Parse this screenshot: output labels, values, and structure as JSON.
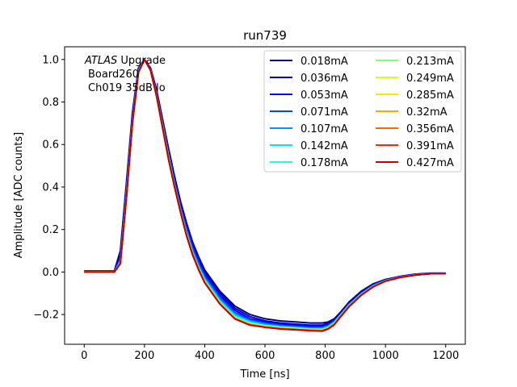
{
  "chart_data": {
    "type": "line",
    "title": "run739",
    "xlabel": "Time [ns]",
    "ylabel": "Amplitude [ADC counts]",
    "xlim": [
      -65,
      1265
    ],
    "ylim": [
      -0.34,
      1.06
    ],
    "xticks": [
      0,
      200,
      400,
      600,
      800,
      1000,
      1200
    ],
    "yticks": [
      -0.2,
      0.0,
      0.2,
      0.4,
      0.6,
      0.8,
      1.0
    ],
    "xtick_labels": [
      "0",
      "200",
      "400",
      "600",
      "800",
      "1000",
      "1200"
    ],
    "ytick_labels": [
      "−0.2",
      "0.0",
      "0.2",
      "0.4",
      "0.6",
      "0.8",
      "1.0"
    ],
    "grid": false,
    "legend_position": "top-right",
    "legend_columns": 2,
    "annotation": {
      "line1_italic": "ATLAS",
      "line1_rest": " Upgrade",
      "line2": "Board260",
      "line3": "Ch019 35dB lo"
    },
    "x": [
      0,
      100,
      120,
      140,
      160,
      180,
      200,
      220,
      240,
      260,
      280,
      300,
      320,
      340,
      360,
      380,
      400,
      450,
      500,
      550,
      600,
      650,
      700,
      750,
      790,
      810,
      830,
      850,
      880,
      920,
      960,
      1000,
      1050,
      1100,
      1150,
      1200
    ],
    "series": [
      {
        "name": "0.018mA",
        "color": "#00007f",
        "values": [
          0.005,
          0.005,
          0.1,
          0.42,
          0.75,
          0.96,
          1.0,
          0.96,
          0.86,
          0.72,
          0.58,
          0.45,
          0.33,
          0.23,
          0.14,
          0.07,
          0.01,
          -0.09,
          -0.16,
          -0.2,
          -0.22,
          -0.23,
          -0.235,
          -0.24,
          -0.24,
          -0.235,
          -0.22,
          -0.19,
          -0.14,
          -0.09,
          -0.055,
          -0.035,
          -0.02,
          -0.01,
          -0.005,
          -0.005
        ]
      },
      {
        "name": "0.036mA",
        "color": "#0000c4",
        "values": [
          0.003,
          0.003,
          0.08,
          0.4,
          0.74,
          0.96,
          1.0,
          0.96,
          0.85,
          0.71,
          0.57,
          0.44,
          0.32,
          0.22,
          0.13,
          0.06,
          0.0,
          -0.1,
          -0.17,
          -0.21,
          -0.23,
          -0.24,
          -0.245,
          -0.25,
          -0.25,
          -0.24,
          -0.225,
          -0.195,
          -0.145,
          -0.095,
          -0.058,
          -0.037,
          -0.021,
          -0.011,
          -0.006,
          -0.006
        ]
      },
      {
        "name": "0.053mA",
        "color": "#0000ff",
        "values": [
          0.002,
          0.002,
          0.07,
          0.39,
          0.73,
          0.96,
          1.0,
          0.96,
          0.85,
          0.7,
          0.56,
          0.43,
          0.31,
          0.21,
          0.12,
          0.05,
          -0.01,
          -0.11,
          -0.18,
          -0.22,
          -0.235,
          -0.245,
          -0.25,
          -0.255,
          -0.255,
          -0.245,
          -0.228,
          -0.198,
          -0.148,
          -0.097,
          -0.06,
          -0.038,
          -0.022,
          -0.012,
          -0.006,
          -0.006
        ]
      },
      {
        "name": "0.071mA",
        "color": "#0048ff",
        "values": [
          0.001,
          0.001,
          0.06,
          0.38,
          0.72,
          0.95,
          1.0,
          0.95,
          0.84,
          0.7,
          0.55,
          0.42,
          0.3,
          0.2,
          0.11,
          0.04,
          -0.02,
          -0.12,
          -0.19,
          -0.225,
          -0.24,
          -0.25,
          -0.255,
          -0.26,
          -0.26,
          -0.25,
          -0.232,
          -0.2,
          -0.15,
          -0.1,
          -0.062,
          -0.039,
          -0.023,
          -0.013,
          -0.007,
          -0.007
        ]
      },
      {
        "name": "0.107mA",
        "color": "#0094ff",
        "values": [
          0.0,
          0.0,
          0.05,
          0.37,
          0.71,
          0.95,
          1.0,
          0.95,
          0.84,
          0.69,
          0.55,
          0.41,
          0.29,
          0.19,
          0.1,
          0.03,
          -0.03,
          -0.13,
          -0.2,
          -0.23,
          -0.245,
          -0.255,
          -0.26,
          -0.265,
          -0.265,
          -0.255,
          -0.235,
          -0.203,
          -0.153,
          -0.102,
          -0.064,
          -0.04,
          -0.024,
          -0.013,
          -0.007,
          -0.007
        ]
      },
      {
        "name": "0.142mA",
        "color": "#00e5f7",
        "values": [
          0.0,
          0.0,
          0.05,
          0.36,
          0.7,
          0.94,
          1.0,
          0.95,
          0.83,
          0.69,
          0.54,
          0.41,
          0.29,
          0.18,
          0.09,
          0.02,
          -0.035,
          -0.135,
          -0.205,
          -0.235,
          -0.25,
          -0.258,
          -0.262,
          -0.267,
          -0.268,
          -0.258,
          -0.238,
          -0.205,
          -0.155,
          -0.104,
          -0.065,
          -0.041,
          -0.024,
          -0.014,
          -0.008,
          -0.008
        ]
      },
      {
        "name": "0.178mA",
        "color": "#29ffce",
        "values": [
          0.0,
          0.0,
          0.04,
          0.36,
          0.7,
          0.94,
          1.0,
          0.95,
          0.83,
          0.68,
          0.54,
          0.4,
          0.28,
          0.18,
          0.09,
          0.02,
          -0.04,
          -0.14,
          -0.21,
          -0.24,
          -0.252,
          -0.26,
          -0.264,
          -0.269,
          -0.27,
          -0.26,
          -0.24,
          -0.207,
          -0.157,
          -0.105,
          -0.066,
          -0.042,
          -0.025,
          -0.014,
          -0.008,
          -0.008
        ]
      },
      {
        "name": "0.213mA",
        "color": "#7cff79",
        "values": [
          0.0,
          0.0,
          0.04,
          0.35,
          0.7,
          0.94,
          1.0,
          0.95,
          0.83,
          0.68,
          0.53,
          0.4,
          0.28,
          0.17,
          0.08,
          0.01,
          -0.045,
          -0.145,
          -0.215,
          -0.243,
          -0.255,
          -0.262,
          -0.266,
          -0.27,
          -0.272,
          -0.262,
          -0.242,
          -0.208,
          -0.158,
          -0.106,
          -0.067,
          -0.042,
          -0.025,
          -0.014,
          -0.008,
          -0.008
        ]
      },
      {
        "name": "0.249mA",
        "color": "#ceff29",
        "values": [
          0.0,
          0.0,
          0.04,
          0.35,
          0.7,
          0.94,
          1.0,
          0.95,
          0.83,
          0.68,
          0.53,
          0.4,
          0.28,
          0.17,
          0.08,
          0.01,
          -0.047,
          -0.147,
          -0.217,
          -0.245,
          -0.256,
          -0.263,
          -0.267,
          -0.271,
          -0.273,
          -0.263,
          -0.243,
          -0.209,
          -0.159,
          -0.107,
          -0.067,
          -0.042,
          -0.025,
          -0.014,
          -0.008,
          -0.008
        ]
      },
      {
        "name": "0.285mA",
        "color": "#ffe600",
        "values": [
          0.0,
          0.0,
          0.04,
          0.35,
          0.7,
          0.94,
          1.0,
          0.95,
          0.83,
          0.68,
          0.53,
          0.4,
          0.28,
          0.17,
          0.08,
          0.01,
          -0.048,
          -0.148,
          -0.218,
          -0.246,
          -0.257,
          -0.264,
          -0.268,
          -0.272,
          -0.274,
          -0.264,
          -0.244,
          -0.21,
          -0.16,
          -0.107,
          -0.068,
          -0.043,
          -0.025,
          -0.014,
          -0.008,
          -0.008
        ]
      },
      {
        "name": "0.32mA",
        "color": "#ffa400",
        "values": [
          0.0,
          0.0,
          0.04,
          0.35,
          0.7,
          0.94,
          1.0,
          0.95,
          0.83,
          0.68,
          0.53,
          0.4,
          0.28,
          0.17,
          0.08,
          0.01,
          -0.049,
          -0.149,
          -0.219,
          -0.247,
          -0.258,
          -0.265,
          -0.269,
          -0.273,
          -0.275,
          -0.265,
          -0.245,
          -0.21,
          -0.16,
          -0.108,
          -0.068,
          -0.043,
          -0.025,
          -0.014,
          -0.008,
          -0.008
        ]
      },
      {
        "name": "0.356mA",
        "color": "#ff6800",
        "values": [
          0.0,
          0.0,
          0.04,
          0.35,
          0.7,
          0.94,
          1.0,
          0.95,
          0.83,
          0.68,
          0.53,
          0.4,
          0.28,
          0.17,
          0.08,
          0.01,
          -0.05,
          -0.15,
          -0.22,
          -0.248,
          -0.259,
          -0.266,
          -0.27,
          -0.274,
          -0.276,
          -0.266,
          -0.246,
          -0.211,
          -0.161,
          -0.108,
          -0.068,
          -0.043,
          -0.025,
          -0.014,
          -0.008,
          -0.008
        ]
      },
      {
        "name": "0.391mA",
        "color": "#ff2a00",
        "values": [
          0.0,
          0.0,
          0.04,
          0.35,
          0.7,
          0.94,
          1.0,
          0.95,
          0.83,
          0.68,
          0.53,
          0.4,
          0.28,
          0.17,
          0.08,
          0.01,
          -0.05,
          -0.15,
          -0.22,
          -0.249,
          -0.26,
          -0.267,
          -0.271,
          -0.275,
          -0.277,
          -0.267,
          -0.247,
          -0.212,
          -0.161,
          -0.108,
          -0.068,
          -0.043,
          -0.025,
          -0.014,
          -0.008,
          -0.008
        ]
      },
      {
        "name": "0.427mA",
        "color": "#c40000",
        "values": [
          0.0,
          0.0,
          0.04,
          0.35,
          0.7,
          0.94,
          1.0,
          0.95,
          0.83,
          0.68,
          0.53,
          0.4,
          0.28,
          0.17,
          0.08,
          0.01,
          -0.05,
          -0.15,
          -0.22,
          -0.25,
          -0.26,
          -0.268,
          -0.272,
          -0.276,
          -0.278,
          -0.268,
          -0.248,
          -0.213,
          -0.162,
          -0.109,
          -0.069,
          -0.043,
          -0.025,
          -0.014,
          -0.008,
          -0.008
        ]
      }
    ]
  }
}
